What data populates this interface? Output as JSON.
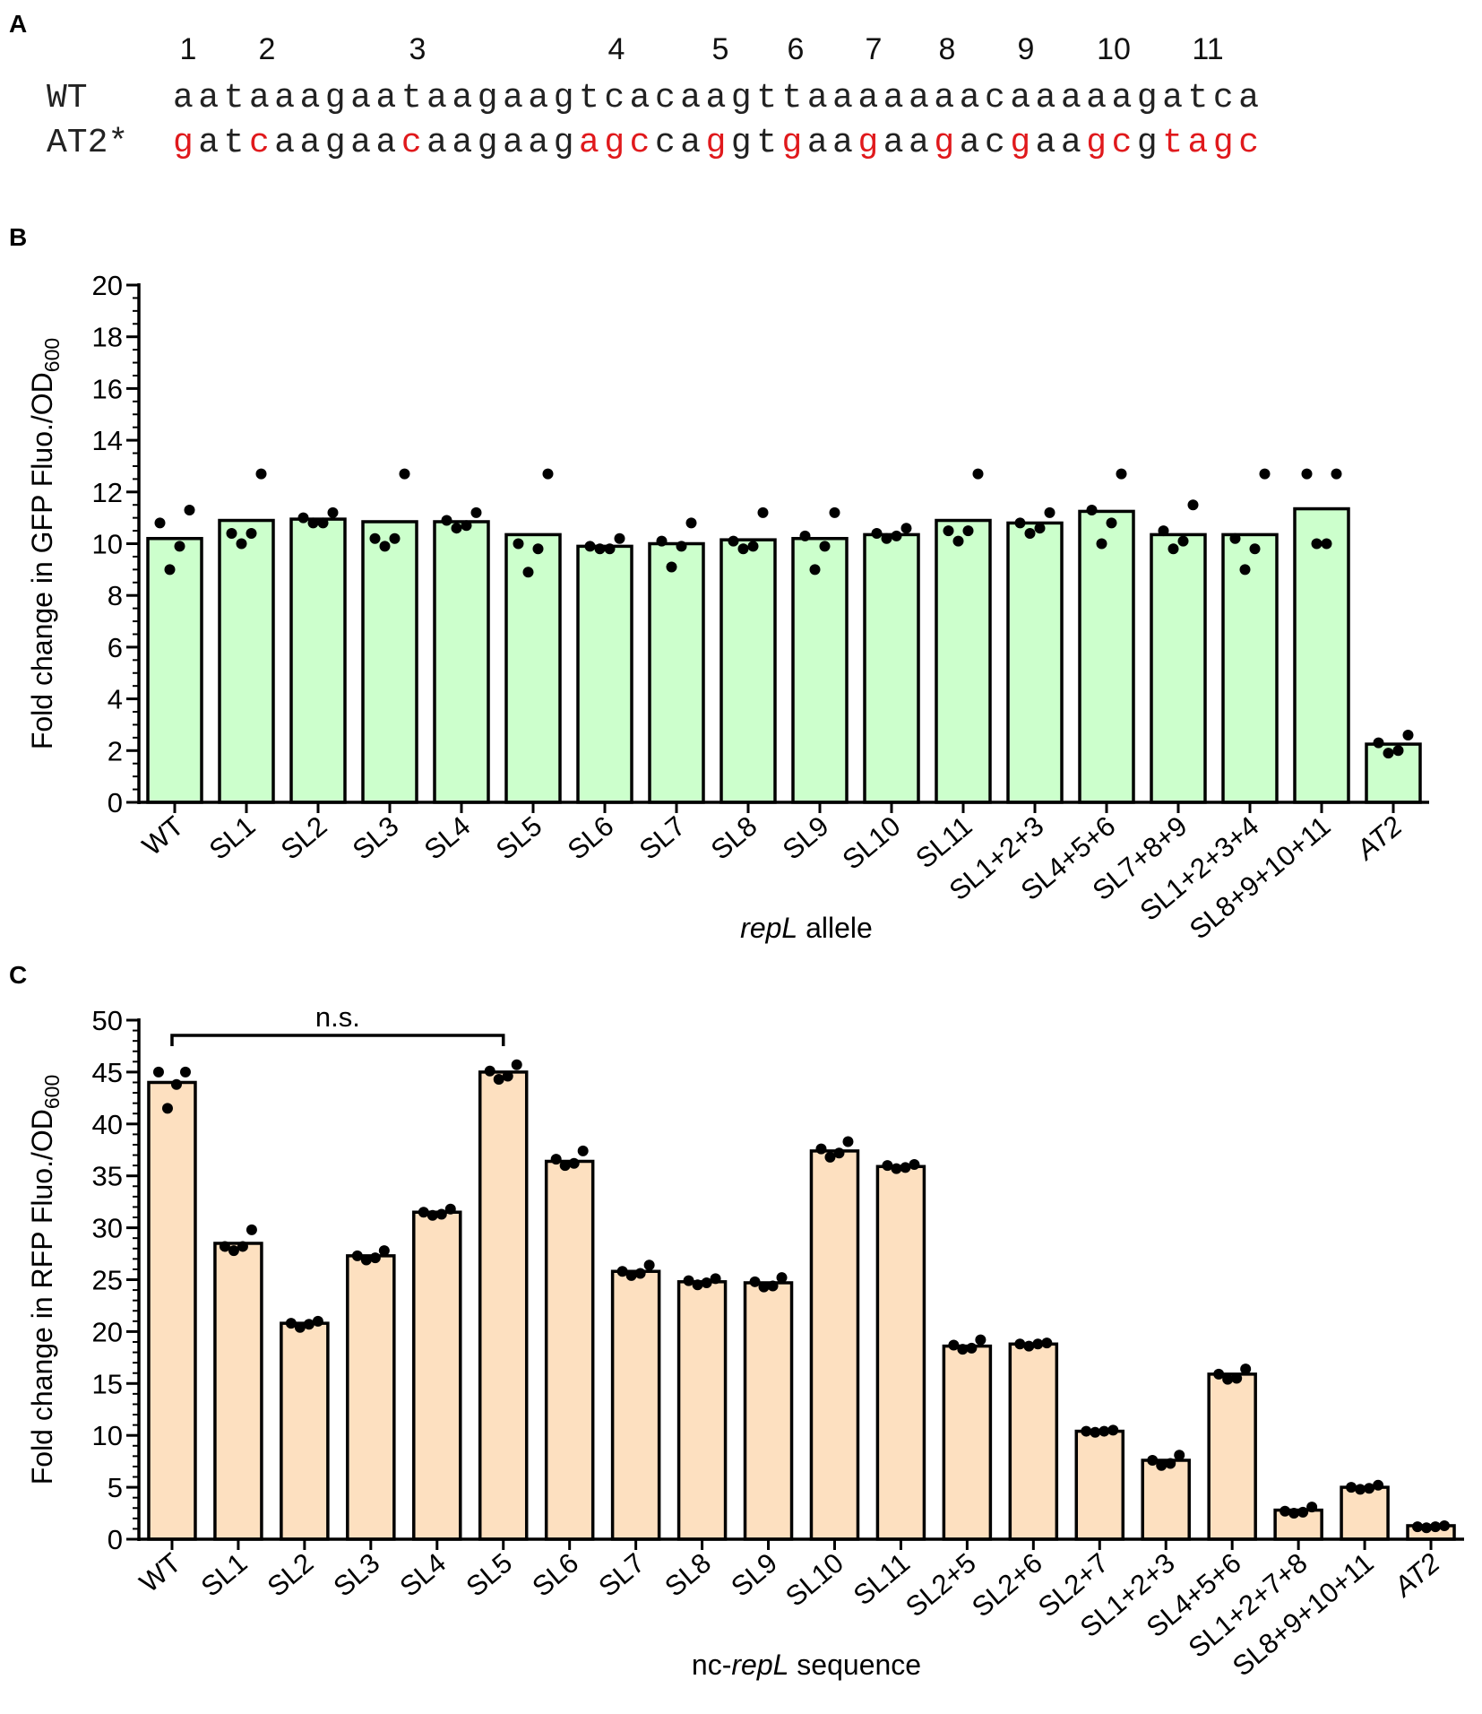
{
  "panels": {
    "a": {
      "label": "A"
    },
    "b": {
      "label": "B"
    },
    "c": {
      "label": "C"
    }
  },
  "sequence_panel": {
    "site_numbers": [
      "1",
      "2",
      "3",
      "4",
      "5",
      "6",
      "7",
      "8",
      "9",
      "10",
      "11"
    ],
    "wt_label": "WT",
    "wt_sequence": "aataaagaataagaagtcacaagttaaaaaaacaaaaagatca",
    "at2_label": "AT2*",
    "at2_segments": [
      {
        "text": "g",
        "mutated": true
      },
      {
        "text": "at",
        "mutated": false
      },
      {
        "text": "c",
        "mutated": true
      },
      {
        "text": "aagaa",
        "mutated": false
      },
      {
        "text": "c",
        "mutated": true
      },
      {
        "text": "aagaag",
        "mutated": false
      },
      {
        "text": "agc",
        "mutated": true
      },
      {
        "text": "ca",
        "mutated": false
      },
      {
        "text": "g",
        "mutated": true
      },
      {
        "text": "gt",
        "mutated": false
      },
      {
        "text": "g",
        "mutated": true
      },
      {
        "text": "aa",
        "mutated": false
      },
      {
        "text": "g",
        "mutated": true
      },
      {
        "text": "aa",
        "mutated": false
      },
      {
        "text": "g",
        "mutated": true
      },
      {
        "text": "ac",
        "mutated": false
      },
      {
        "text": "g",
        "mutated": true
      },
      {
        "text": "aa",
        "mutated": false
      },
      {
        "text": "gc",
        "mutated": true
      },
      {
        "text": "g",
        "mutated": false
      },
      {
        "text": "tagc",
        "mutated": true
      }
    ],
    "colors": {
      "normal": "#222222",
      "mutated": "#e0191c"
    }
  },
  "chart_data": [
    {
      "id": "B",
      "type": "bar",
      "title": "",
      "xlabel_italic": "repL",
      "xlabel_rest": " allele",
      "ylabel_main": "Fold change in GFP Fluo./OD",
      "ylabel_sub": "600",
      "ylim": [
        0,
        20
      ],
      "yticks": [
        0,
        2,
        4,
        6,
        8,
        10,
        12,
        14,
        16,
        18,
        20
      ],
      "bar_color": "#ccffcc",
      "categories": [
        "WT",
        "SL1",
        "SL2",
        "SL3",
        "SL4",
        "SL5",
        "SL6",
        "SL7",
        "SL8",
        "SL9",
        "SL10",
        "SL11",
        "SL1+2+3",
        "SL4+5+6",
        "SL7+8+9",
        "SL1+2+3+4",
        "SL8+9+10+11",
        "AT2"
      ],
      "italic_categories": [
        "AT2"
      ],
      "values": [
        10.2,
        10.9,
        10.95,
        10.85,
        10.85,
        10.35,
        9.9,
        10.0,
        10.15,
        10.2,
        10.35,
        10.9,
        10.8,
        11.25,
        10.35,
        10.35,
        11.35,
        2.25
      ],
      "points": [
        [
          9.0,
          9.9,
          10.8,
          11.3
        ],
        [
          10.0,
          10.4,
          10.4,
          12.7
        ],
        [
          10.8,
          10.8,
          11.0,
          11.2
        ],
        [
          9.9,
          10.2,
          10.2,
          12.7
        ],
        [
          10.6,
          10.7,
          10.9,
          11.2
        ],
        [
          8.9,
          9.8,
          10.0,
          12.7
        ],
        [
          9.8,
          9.8,
          9.9,
          10.2
        ],
        [
          9.1,
          9.9,
          10.1,
          10.8
        ],
        [
          9.8,
          9.9,
          10.1,
          11.2
        ],
        [
          9.0,
          9.9,
          10.3,
          11.2
        ],
        [
          10.2,
          10.3,
          10.4,
          10.6
        ],
        [
          10.1,
          10.5,
          10.5,
          12.7
        ],
        [
          10.4,
          10.6,
          10.8,
          11.2
        ],
        [
          10.0,
          10.8,
          11.3,
          12.7
        ],
        [
          9.8,
          10.1,
          10.5,
          11.5
        ],
        [
          9.0,
          9.8,
          10.2,
          12.7
        ],
        [
          10.0,
          10.0,
          12.7,
          12.7
        ],
        [
          1.9,
          2.0,
          2.3,
          2.6
        ]
      ]
    },
    {
      "id": "C",
      "type": "bar",
      "title": "",
      "xlabel_pre": "nc-",
      "xlabel_italic": "repL",
      "xlabel_rest": " sequence",
      "ylabel_main": "Fold change in RFP Fluo./OD",
      "ylabel_sub": "600",
      "ylim": [
        0,
        50
      ],
      "yticks": [
        0,
        5,
        10,
        15,
        20,
        25,
        30,
        35,
        40,
        45,
        50
      ],
      "bar_color": "#fde0c0",
      "annotation": {
        "text": "n.s.",
        "from": "WT",
        "to": "SL5"
      },
      "categories": [
        "WT",
        "SL1",
        "SL2",
        "SL3",
        "SL4",
        "SL5",
        "SL6",
        "SL7",
        "SL8",
        "SL9",
        "SL10",
        "SL11",
        "SL2+5",
        "SL2+6",
        "SL2+7",
        "SL1+2+3",
        "SL4+5+6",
        "SL1+2+7+8",
        "SL8+9+10+11",
        "AT2"
      ],
      "italic_categories": [
        "AT2"
      ],
      "values": [
        44.0,
        28.5,
        20.8,
        27.3,
        31.5,
        45.0,
        36.4,
        25.8,
        24.8,
        24.7,
        37.4,
        35.9,
        18.6,
        18.8,
        10.4,
        7.6,
        15.9,
        2.8,
        5.0,
        1.3
      ],
      "points": [
        [
          41.5,
          43.8,
          45.0,
          45.0
        ],
        [
          27.8,
          28.2,
          28.2,
          29.8
        ],
        [
          20.4,
          20.7,
          20.8,
          21.0
        ],
        [
          26.9,
          27.1,
          27.3,
          27.8
        ],
        [
          31.2,
          31.3,
          31.5,
          31.8
        ],
        [
          44.3,
          44.6,
          45.1,
          45.7
        ],
        [
          36.0,
          36.2,
          36.6,
          37.4
        ],
        [
          25.4,
          25.6,
          25.8,
          26.4
        ],
        [
          24.5,
          24.7,
          24.9,
          25.1
        ],
        [
          24.3,
          24.4,
          24.8,
          25.2
        ],
        [
          36.8,
          37.2,
          37.6,
          38.3
        ],
        [
          35.7,
          35.8,
          36.0,
          36.1
        ],
        [
          18.3,
          18.4,
          18.7,
          19.2
        ],
        [
          18.6,
          18.8,
          18.8,
          18.9
        ],
        [
          10.3,
          10.4,
          10.4,
          10.5
        ],
        [
          7.1,
          7.3,
          7.6,
          8.1
        ],
        [
          15.4,
          15.5,
          15.9,
          16.4
        ],
        [
          2.5,
          2.6,
          2.7,
          3.1
        ],
        [
          4.8,
          4.9,
          5.0,
          5.2
        ],
        [
          1.1,
          1.2,
          1.2,
          1.3
        ]
      ]
    }
  ]
}
